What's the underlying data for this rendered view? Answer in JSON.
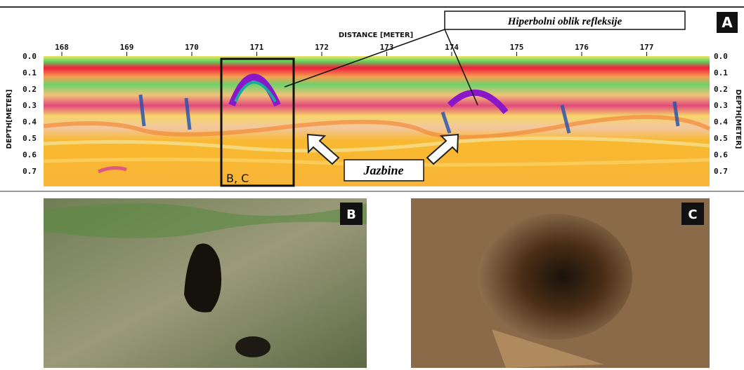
{
  "panel_a": {
    "label": "A",
    "x_axis_title": "DISTANCE [METER]",
    "x_ticks": [
      "168",
      "169",
      "170",
      "171",
      "172",
      "173",
      "174",
      "175",
      "176",
      "177"
    ],
    "y_axis_title_left": "DEPTH[METER]",
    "y_axis_title_right": "DEPTH[METER]",
    "y_ticks": [
      "0.0",
      "0.1",
      "0.2",
      "0.3",
      "0.4",
      "0.5",
      "0.6",
      "0.7"
    ],
    "box_label": "B, C",
    "callout": "Hiperbolni oblik refleksije",
    "arrow_label": "Jazbine"
  },
  "panel_b": {
    "label": "B"
  },
  "panel_c": {
    "label": "C"
  }
}
